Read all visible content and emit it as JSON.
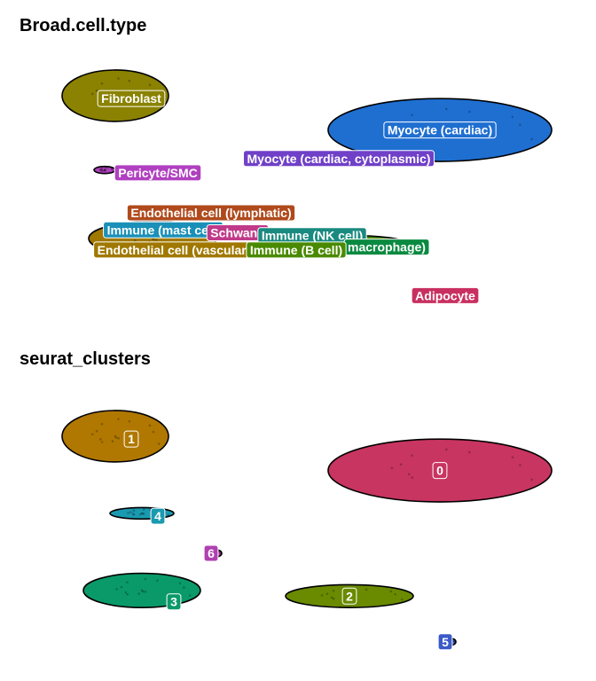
{
  "chart_data": [
    {
      "type": "scatter",
      "title": "Broad.cell.type",
      "xlim": [
        0,
        100
      ],
      "ylim": [
        0,
        100
      ],
      "grid": false,
      "legend": "none",
      "groups": [
        {
          "name": "Fibroblast",
          "color": "#8a8200",
          "center": [
            15,
            82
          ],
          "radii": [
            10,
            9
          ],
          "label_at": [
            18,
            81
          ]
        },
        {
          "name": "Myocyte (cardiac)",
          "color": "#1f6fd1",
          "center": [
            76,
            70
          ],
          "radii": [
            21,
            11
          ],
          "label_at": [
            76,
            70
          ]
        },
        {
          "name": "Pericyte/SMC",
          "color": "#b040c0",
          "center": [
            13,
            56
          ],
          "radii": [
            2,
            1
          ],
          "label_at": [
            23,
            55
          ]
        },
        {
          "name": "Endothelial cell (vascular)",
          "color": "#a07800",
          "center": [
            22,
            32
          ],
          "radii": [
            12,
            6
          ],
          "label_at": [
            26,
            28
          ]
        },
        {
          "name": "Immune (B cell)",
          "color": "#4a8a00",
          "center": [
            60,
            30
          ],
          "radii": [
            10,
            3
          ],
          "label_at": [
            50,
            28
          ]
        }
      ],
      "labels": [
        {
          "text": "Fibroblast",
          "color": "#8a8200",
          "at": [
            18,
            81
          ]
        },
        {
          "text": "Myocyte (cardiac)",
          "color": "#1f6fd1",
          "at": [
            76,
            70
          ]
        },
        {
          "text": "Myocyte (cardiac, cytoplasmic)",
          "color": "#7040c8",
          "at": [
            57,
            60
          ]
        },
        {
          "text": "Pericyte/SMC",
          "color": "#b040c0",
          "at": [
            23,
            55
          ]
        },
        {
          "text": "Endothelial cell (lymphatic)",
          "color": "#b04a1c",
          "at": [
            33,
            41
          ]
        },
        {
          "text": "Immune (mast cell)",
          "color": "#1a90b8",
          "at": [
            24,
            35
          ]
        },
        {
          "text": "Schwann",
          "color": "#c03a8a",
          "at": [
            38,
            34
          ]
        },
        {
          "text": "Immune (NK cell)",
          "color": "#1a8a80",
          "at": [
            52,
            33
          ]
        },
        {
          "text": "macrophage)",
          "color": "#0a8a40",
          "at": [
            66,
            29
          ]
        },
        {
          "text": "Endothelial cell (vascular)",
          "color": "#a07800",
          "at": [
            26,
            28
          ]
        },
        {
          "text": "Immune (B cell)",
          "color": "#4a8a00",
          "at": [
            49,
            28
          ]
        },
        {
          "text": "Adipocyte",
          "color": "#c83060",
          "at": [
            77,
            12
          ]
        }
      ]
    },
    {
      "type": "scatter",
      "title": "seurat_clusters",
      "xlim": [
        0,
        100
      ],
      "ylim": [
        0,
        100
      ],
      "grid": false,
      "legend": "none",
      "groups": [
        {
          "name": "0",
          "color": "#c83560",
          "center": [
            76,
            70
          ],
          "radii": [
            21,
            11
          ],
          "label_at": [
            76,
            70
          ]
        },
        {
          "name": "1",
          "color": "#b07800",
          "center": [
            15,
            82
          ],
          "radii": [
            10,
            9
          ],
          "label_at": [
            18,
            81
          ]
        },
        {
          "name": "2",
          "color": "#6a8a00",
          "center": [
            59,
            26
          ],
          "radii": [
            12,
            4
          ],
          "label_at": [
            59,
            26
          ]
        },
        {
          "name": "3",
          "color": "#0a9a6a",
          "center": [
            20,
            28
          ],
          "radii": [
            11,
            6
          ],
          "label_at": [
            26,
            24
          ]
        },
        {
          "name": "4",
          "color": "#1a9ab0",
          "center": [
            20,
            55
          ],
          "radii": [
            6,
            2
          ],
          "label_at": [
            23,
            54
          ]
        },
        {
          "name": "5",
          "color": "#3a5ac8",
          "center": [
            78,
            10
          ],
          "radii": [
            1,
            1
          ],
          "label_at": [
            77,
            10
          ]
        },
        {
          "name": "6",
          "color": "#b040b0",
          "center": [
            34,
            41
          ],
          "radii": [
            1,
            1
          ],
          "label_at": [
            33,
            41
          ]
        }
      ],
      "labels": [
        {
          "text": "0",
          "color": "#c83560",
          "at": [
            76,
            70
          ]
        },
        {
          "text": "1",
          "color": "#b07800",
          "at": [
            18,
            81
          ]
        },
        {
          "text": "2",
          "color": "#6a8a00",
          "at": [
            59,
            26
          ]
        },
        {
          "text": "3",
          "color": "#0a9a6a",
          "at": [
            26,
            24
          ]
        },
        {
          "text": "4",
          "color": "#1a9ab0",
          "at": [
            23,
            54
          ]
        },
        {
          "text": "5",
          "color": "#3a5ac8",
          "at": [
            77,
            10
          ]
        },
        {
          "text": "6",
          "color": "#b040b0",
          "at": [
            33,
            41
          ]
        }
      ]
    }
  ]
}
